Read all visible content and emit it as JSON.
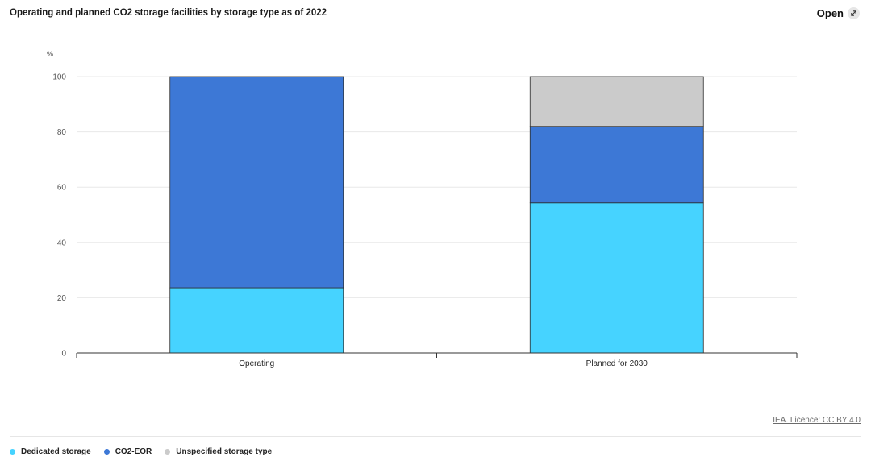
{
  "header": {
    "title": "Operating and planned CO2 storage facilities by storage type as of 2022",
    "open_label": "Open",
    "open_icon": "expand-arrow-icon"
  },
  "footer": {
    "licence": "IEA. Licence: CC BY 4.0"
  },
  "colors": {
    "dedicated": "#46d3ff",
    "co2_eor": "#3d78d6",
    "unspecified": "#cbcbcb"
  },
  "chart_data": {
    "type": "bar",
    "stacked": true,
    "categories": [
      "Operating",
      "Planned for 2030"
    ],
    "series": [
      {
        "name": "Dedicated storage",
        "values": [
          23.6,
          54.3
        ],
        "color": "#46d3ff"
      },
      {
        "name": "CO2-EOR",
        "values": [
          76.4,
          27.7
        ],
        "color": "#3d78d6"
      },
      {
        "name": "Unspecified storage type",
        "values": [
          0,
          18.0
        ],
        "color": "#cbcbcb"
      }
    ],
    "ylabel": "%",
    "ylim": [
      0,
      100
    ],
    "yticks": [
      0,
      20,
      40,
      60,
      80,
      100
    ],
    "grid": true,
    "legend_position": "bottom-left"
  }
}
